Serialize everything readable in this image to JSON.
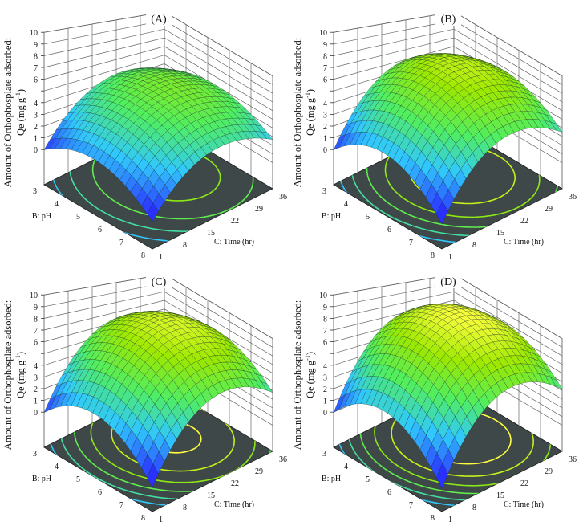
{
  "chart_data": [
    {
      "type": "surface",
      "title": "(A)",
      "x_axis": {
        "label": "B: pH",
        "ticks": [
          "3",
          "4",
          "5",
          "6",
          "7",
          "8"
        ],
        "range": [
          3,
          8
        ]
      },
      "y_axis": {
        "label": "C: Time (hr)",
        "ticks": [
          "1",
          "8",
          "15",
          "22",
          "29",
          "36"
        ],
        "range": [
          1,
          36
        ]
      },
      "z_axis": {
        "label_line1": "Amount of Orthophosplate adsorbed:",
        "label_line2_main": "Qe (mg g",
        "label_line2_sup": "-1",
        "label_line2_end": ")",
        "ticks": [
          "0",
          "1",
          "2",
          "3",
          "4",
          "",
          "6",
          "7",
          "8",
          "9",
          "10"
        ],
        "range": [
          0,
          10
        ]
      },
      "max_qe": 6.3,
      "floor_contours": true,
      "colormap": [
        "#2a30ff",
        "#30c8ff",
        "#50ee60",
        "#9ce800",
        "#ffff40"
      ]
    },
    {
      "type": "surface",
      "title": "(B)",
      "x_axis": {
        "label": "B: pH",
        "ticks": [
          "3",
          "4",
          "5",
          "6",
          "7",
          "8"
        ],
        "range": [
          3,
          8
        ]
      },
      "y_axis": {
        "label": "C: Time (hr)",
        "ticks": [
          "1",
          "8",
          "15",
          "22",
          "29",
          "36"
        ],
        "range": [
          1,
          36
        ]
      },
      "z_axis": {
        "label_line1": "Amount of Orthophosplate adsorbed:",
        "label_line2_main": "Qe (mg g",
        "label_line2_sup": "-1",
        "label_line2_end": ")",
        "ticks": [
          "0",
          "1",
          "2",
          "3",
          "4",
          "",
          "6",
          "7",
          "8",
          "9",
          "10"
        ],
        "range": [
          0,
          10
        ]
      },
      "max_qe": 8.3,
      "floor_contours": true,
      "colormap": [
        "#2a30ff",
        "#30c8ff",
        "#50ee60",
        "#9ce800",
        "#ffff40"
      ]
    },
    {
      "type": "surface",
      "title": "(C)",
      "x_axis": {
        "label": "B: pH",
        "ticks": [
          "3",
          "4",
          "5",
          "6",
          "7",
          "8"
        ],
        "range": [
          3,
          8
        ]
      },
      "y_axis": {
        "label": "C: Time (hr)",
        "ticks": [
          "1",
          "8",
          "15",
          "22",
          "29",
          "36"
        ],
        "range": [
          1,
          36
        ]
      },
      "z_axis": {
        "label_line1": "Amount of Orthophosplate adsorbed:",
        "label_line2_main": "Qe (mg g",
        "label_line2_sup": "-1",
        "label_line2_end": ")",
        "ticks": [
          "0",
          "1",
          "2",
          "3",
          "4",
          "",
          "6",
          "7",
          "8",
          "9",
          "10"
        ],
        "range": [
          0,
          10
        ]
      },
      "max_qe": 8.9,
      "floor_contours": true,
      "colormap": [
        "#2a30ff",
        "#30c8ff",
        "#50ee60",
        "#9ce800",
        "#ffff40"
      ]
    },
    {
      "type": "surface",
      "title": "(D)",
      "x_axis": {
        "label": "B: pH",
        "ticks": [
          "3",
          "4",
          "5",
          "6",
          "7",
          "8"
        ],
        "range": [
          3,
          8
        ]
      },
      "y_axis": {
        "label": "C: Time (hr)",
        "ticks": [
          "1",
          "8",
          "15",
          "22",
          "29",
          "36"
        ],
        "range": [
          1,
          36
        ]
      },
      "z_axis": {
        "label_line1": "Amount of Orthophosplate adsorbed:",
        "label_line2_main": "Qe (mg g",
        "label_line2_sup": "-1",
        "label_line2_end": ")",
        "ticks": [
          "0",
          "1",
          "2",
          "3",
          "4",
          "",
          "6",
          "7",
          "8",
          "9",
          "10"
        ],
        "range": [
          0,
          10
        ]
      },
      "max_qe": 9.8,
      "floor_contours": true,
      "colormap": [
        "#2a30ff",
        "#30c8ff",
        "#50ee60",
        "#9ce800",
        "#ffff40"
      ]
    }
  ],
  "floor_color": "#3f4849"
}
